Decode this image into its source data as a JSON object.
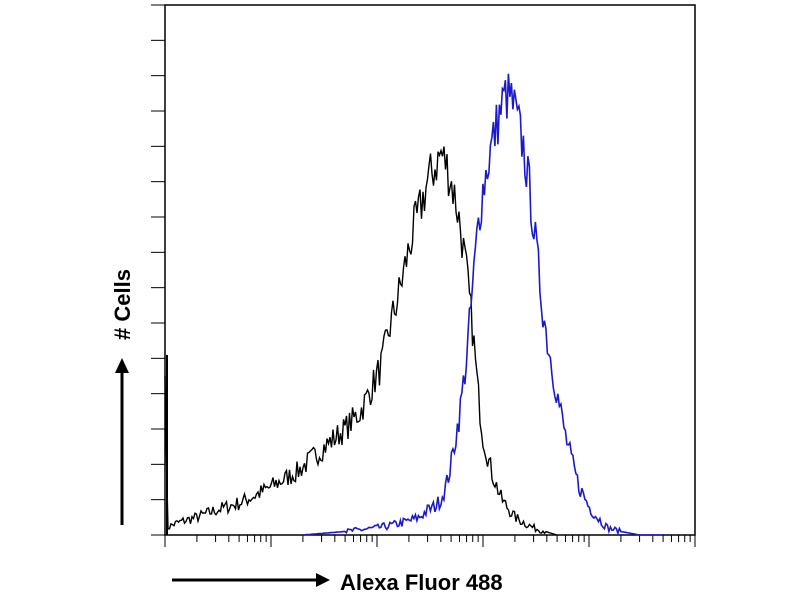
{
  "chart_data": {
    "type": "line",
    "title": "",
    "xlabel": "Alexa Fluor 488",
    "ylabel": "# Cells",
    "x_scale": "log",
    "xlim": [
      1,
      100000
    ],
    "ylim": [
      0,
      150
    ],
    "grid": false,
    "legend": "none",
    "series": [
      {
        "color": "#000000",
        "x": [
          1,
          1.05,
          1.2,
          1.5,
          2,
          3,
          5,
          8,
          12,
          18,
          25,
          35,
          50,
          70,
          90,
          110,
          130,
          160,
          190,
          220,
          260,
          300,
          350,
          400,
          450,
          500,
          560,
          620,
          700,
          800,
          900,
          1000,
          1200,
          1500,
          2000,
          3000,
          5000
        ],
        "y": [
          50,
          2,
          3,
          4,
          5,
          7,
          9,
          12,
          15,
          18,
          22,
          26,
          30,
          35,
          42,
          48,
          58,
          68,
          78,
          86,
          93,
          100,
          104,
          108,
          105,
          100,
          94,
          86,
          74,
          58,
          40,
          28,
          18,
          10,
          5,
          2,
          0
        ]
      },
      {
        "color": "#1a1acc",
        "x": [
          20,
          50,
          100,
          150,
          200,
          250,
          300,
          350,
          400,
          450,
          500,
          600,
          700,
          800,
          900,
          1000,
          1200,
          1400,
          1600,
          1800,
          2000,
          2400,
          2800,
          3200,
          3600,
          4000,
          5000,
          6000,
          7000,
          8000,
          10000,
          12000,
          15000,
          20000,
          30000,
          50000
        ],
        "y": [
          0,
          1,
          2,
          3,
          4,
          5,
          7,
          8,
          10,
          14,
          20,
          34,
          50,
          70,
          88,
          98,
          110,
          118,
          124,
          124,
          120,
          110,
          96,
          80,
          66,
          56,
          40,
          28,
          20,
          14,
          8,
          5,
          2,
          1,
          0,
          0
        ]
      }
    ]
  }
}
